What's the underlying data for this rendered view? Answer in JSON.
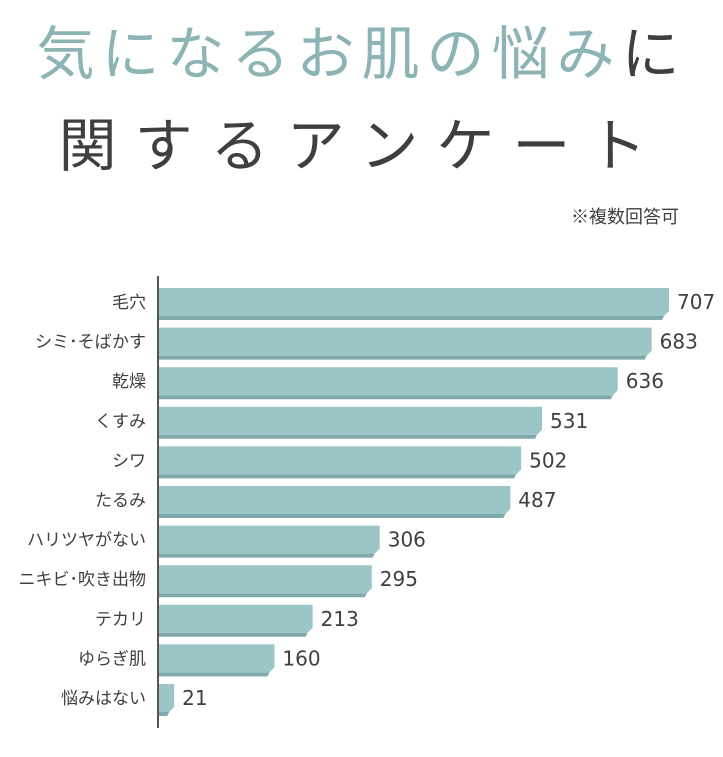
{
  "title": {
    "line1_accent": "気になるお肌の悩み",
    "line1_tail": "に",
    "line2": "関するアンケート"
  },
  "note": "※複数回答可",
  "colors": {
    "bar": "#9bc5c7",
    "bar_shadow": "#7fa9ab",
    "axis": "#555555",
    "title_accent": "#8db4b5",
    "text": "#3f3f3f"
  },
  "chart_data": {
    "type": "bar",
    "orientation": "horizontal",
    "categories": [
      "毛穴",
      "シミ･そばかす",
      "乾燥",
      "くすみ",
      "シワ",
      "たるみ",
      "ハリツヤがない",
      "ニキビ･吹き出物",
      "テカリ",
      "ゆらぎ肌",
      "悩みはない"
    ],
    "values": [
      707,
      683,
      636,
      531,
      502,
      487,
      306,
      295,
      213,
      160,
      21
    ],
    "title": "",
    "xlabel": "",
    "ylabel": "",
    "xlim": [
      0,
      707
    ],
    "grid": false,
    "legend": "none",
    "data_labels": true
  }
}
